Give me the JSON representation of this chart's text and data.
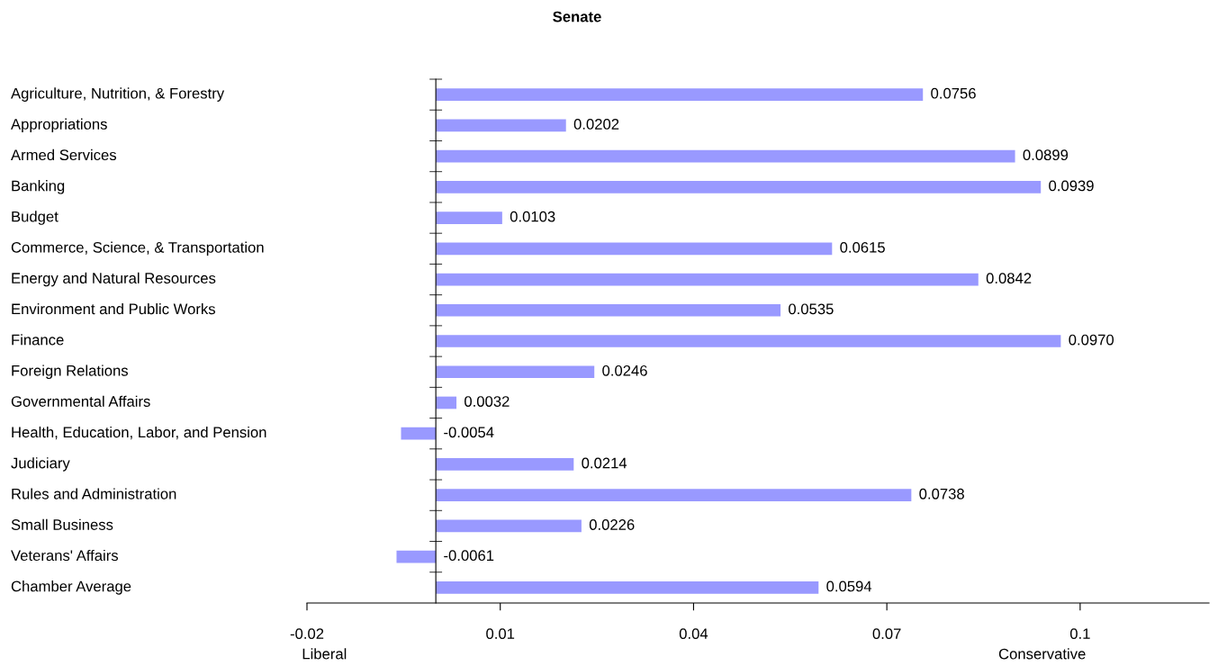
{
  "chart_data": {
    "type": "bar",
    "orientation": "horizontal",
    "title": "Senate",
    "categories": [
      "Agriculture, Nutrition, & Forestry",
      "Appropriations",
      "Armed Services",
      "Banking",
      "Budget",
      "Commerce, Science, & Transportation",
      "Energy and Natural Resources",
      "Environment and Public Works",
      "Finance",
      "Foreign Relations",
      "Governmental Affairs",
      "Health, Education, Labor, and Pension",
      "Judiciary",
      "Rules and Administration",
      "Small Business",
      "Veterans' Affairs",
      "Chamber Average"
    ],
    "values": [
      0.0756,
      0.0202,
      0.0899,
      0.0939,
      0.0103,
      0.0615,
      0.0842,
      0.0535,
      0.097,
      0.0246,
      0.0032,
      -0.0054,
      0.0214,
      0.0738,
      0.0226,
      -0.0061,
      0.0594
    ],
    "value_labels": [
      "0.0756",
      "0.0202",
      "0.0899",
      "0.0939",
      "0.0103",
      "0.0615",
      "0.0842",
      "0.0535",
      "0.0970",
      "0.0246",
      "0.0032",
      "-0.0054",
      "0.0214",
      "0.0738",
      "0.0226",
      "-0.0061",
      "0.0594"
    ],
    "color": "#9999ff",
    "xlim": [
      -0.02,
      0.12
    ],
    "xticks": [
      -0.02,
      0.01,
      0.04,
      0.07,
      0.1
    ],
    "annotations": [
      "Liberal",
      "Conservative"
    ],
    "grid": false,
    "legend": false
  }
}
